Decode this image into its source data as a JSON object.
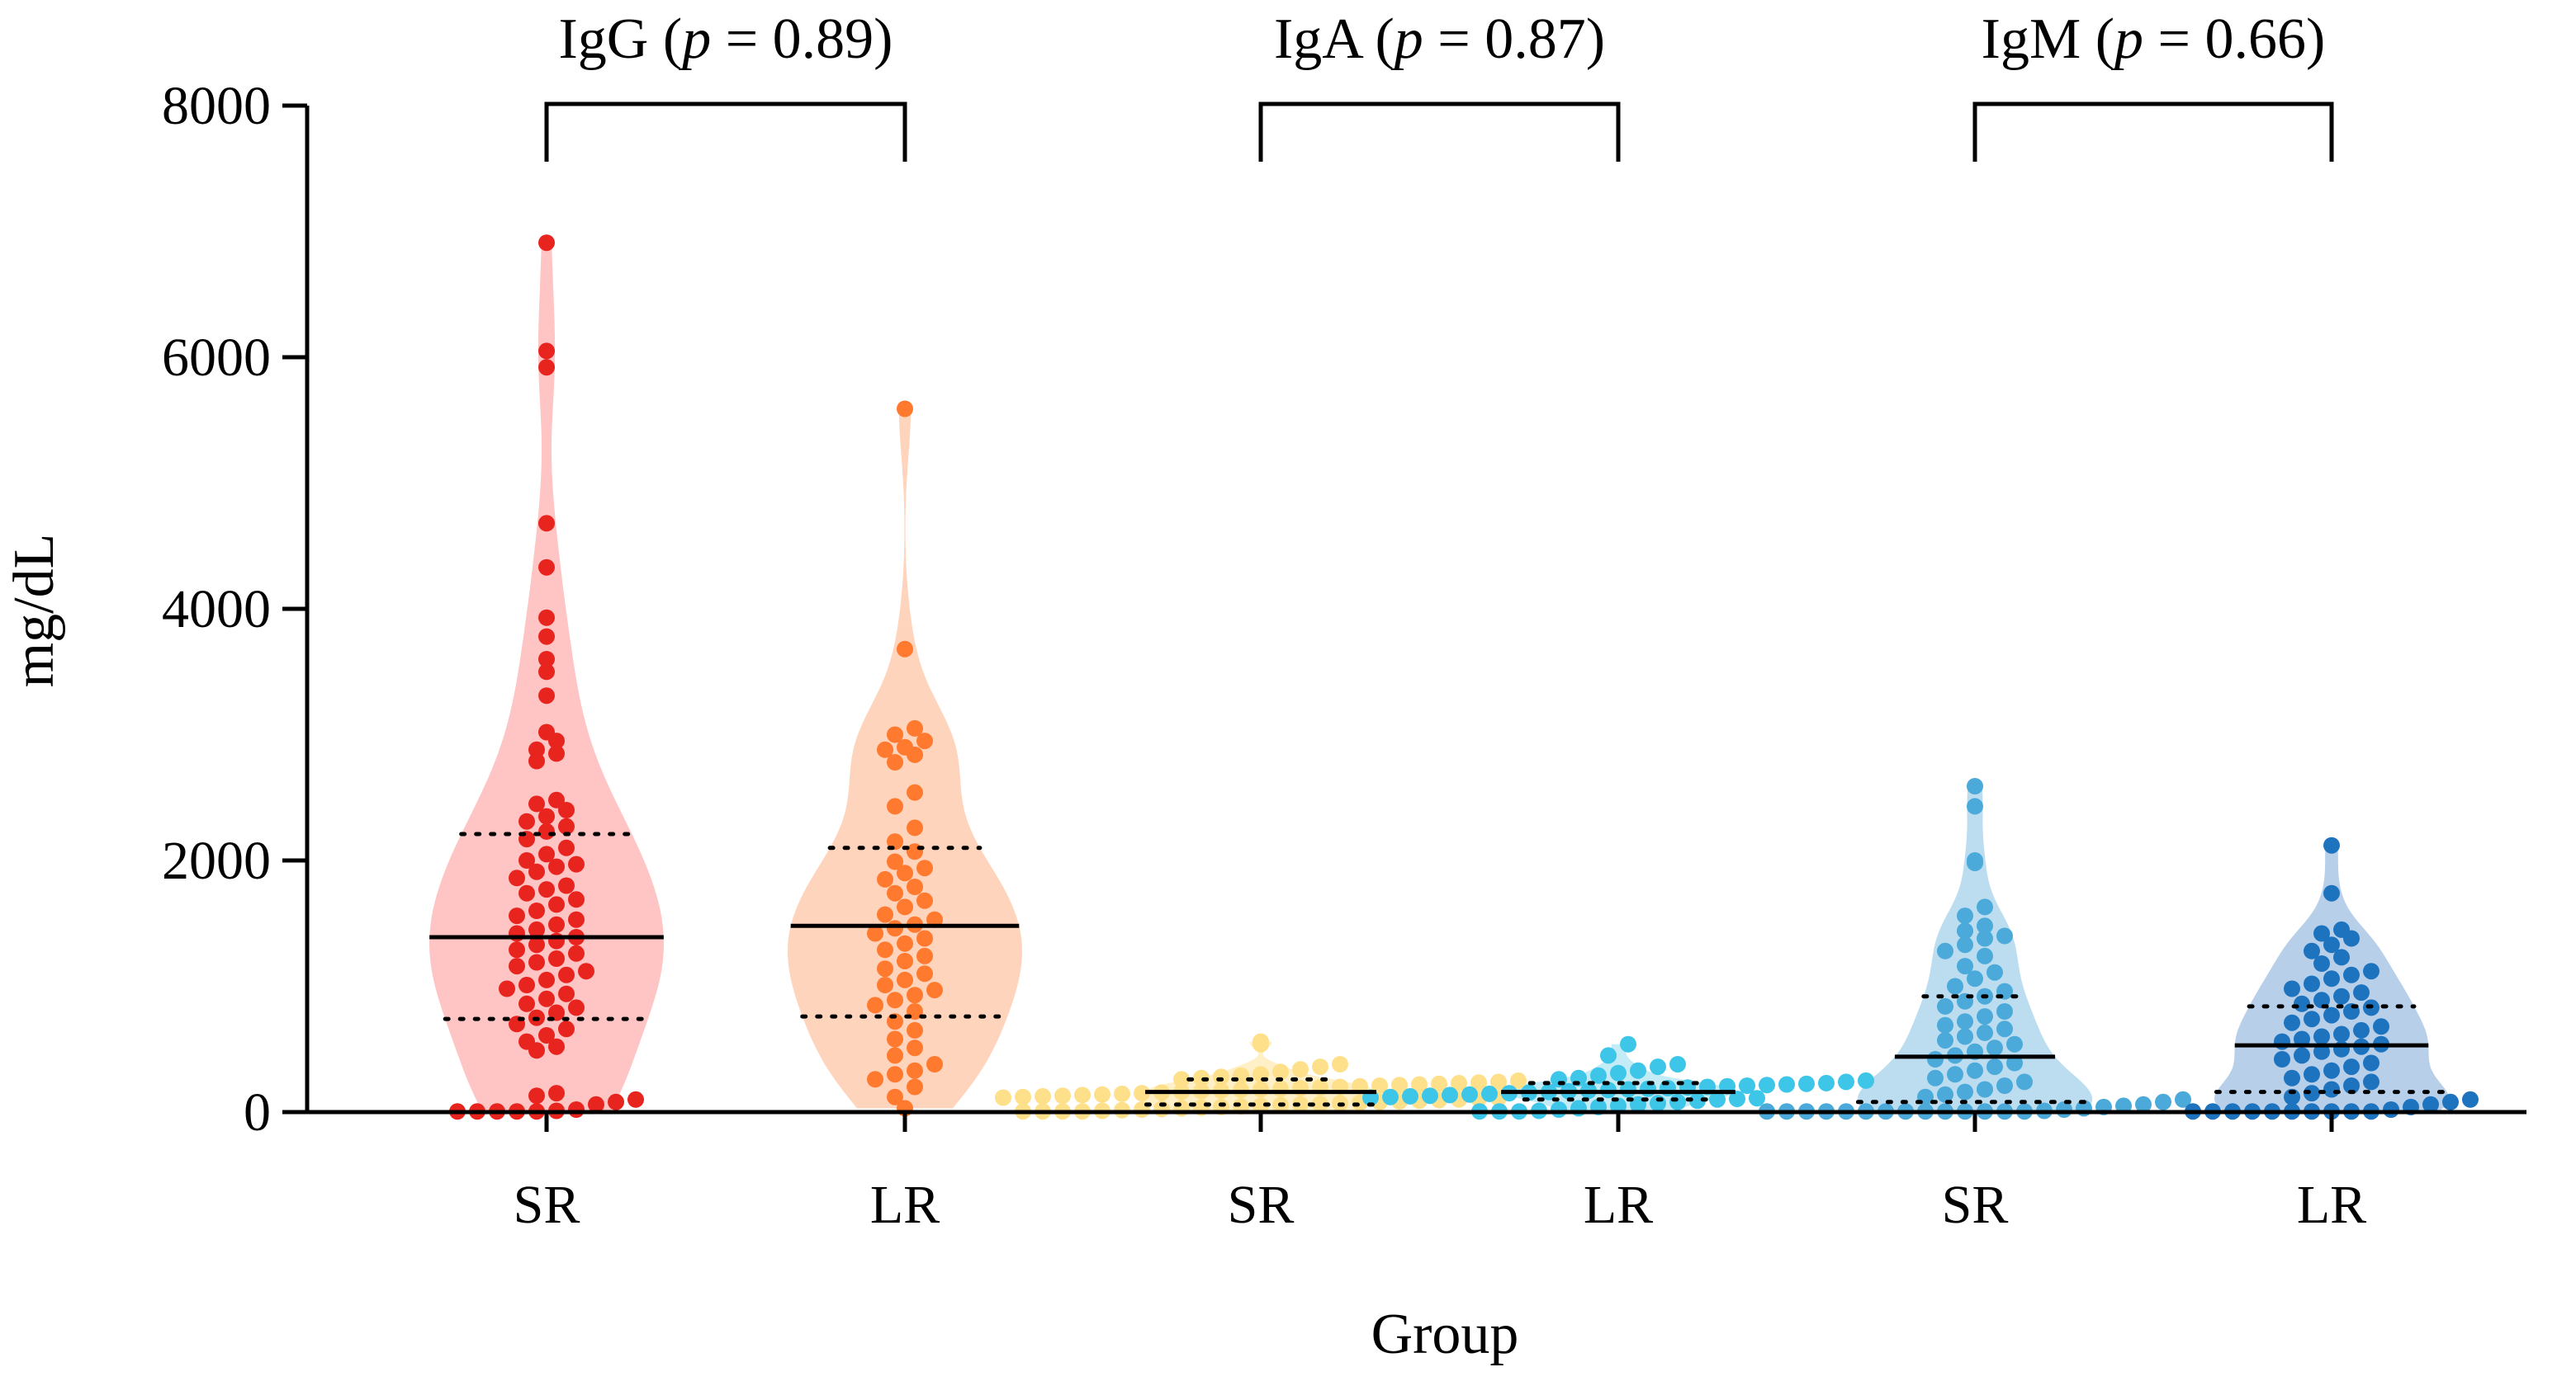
{
  "chart_data": {
    "type": "violin",
    "xlabel": "Group",
    "ylabel": "mg/dL",
    "ylim": [
      0,
      8000
    ],
    "yticks": [
      "0",
      "2000",
      "4000",
      "6000",
      "8000"
    ],
    "grid": false,
    "legend": "none",
    "comparisons": [
      {
        "name": "IgG",
        "p_prefix": "(",
        "p_symbol": "p",
        "p_value_text": " = 0.89)"
      },
      {
        "name": "IgA",
        "p_prefix": "(",
        "p_symbol": "p",
        "p_value_text": " = 0.87)"
      },
      {
        "name": "IgM",
        "p_prefix": "(",
        "p_symbol": "p",
        "p_value_text": " = 0.66)"
      }
    ],
    "series": [
      {
        "name": "IgG",
        "group": "SR",
        "color": "#E8241F",
        "fill": "#FFC4C4",
        "median": 1390,
        "q1": 740,
        "q3": 2210,
        "values": [
          6910,
          6050,
          5920,
          4680,
          4330,
          3930,
          3780,
          3600,
          3500,
          3310,
          3020,
          2950,
          2880,
          2850,
          2790,
          2480,
          2450,
          2400,
          2350,
          2310,
          2270,
          2230,
          2170,
          2100,
          2050,
          2000,
          1970,
          1950,
          1910,
          1860,
          1800,
          1770,
          1740,
          1690,
          1650,
          1600,
          1560,
          1530,
          1490,
          1450,
          1420,
          1390,
          1360,
          1330,
          1290,
          1260,
          1220,
          1190,
          1160,
          1120,
          1090,
          1050,
          1010,
          980,
          940,
          900,
          860,
          830,
          790,
          750,
          700,
          660,
          610,
          560,
          520,
          490,
          150,
          130,
          100,
          80,
          60,
          20,
          10,
          5,
          5,
          5,
          5,
          5
        ]
      },
      {
        "name": "IgG",
        "group": "LR",
        "color": "#FF7A2F",
        "fill": "#FFD4BC",
        "median": 1480,
        "q1": 760,
        "q3": 2100,
        "values": [
          5590,
          3680,
          3050,
          3000,
          2950,
          2900,
          2880,
          2840,
          2780,
          2540,
          2430,
          2260,
          2150,
          2070,
          1990,
          1940,
          1900,
          1850,
          1790,
          1740,
          1680,
          1630,
          1570,
          1530,
          1490,
          1460,
          1420,
          1380,
          1340,
          1290,
          1240,
          1200,
          1140,
          1100,
          1050,
          1010,
          970,
          930,
          890,
          850,
          800,
          720,
          650,
          580,
          510,
          450,
          380,
          330,
          300,
          260,
          200,
          120,
          30
        ]
      },
      {
        "name": "IgA",
        "group": "SR",
        "color": "#FFE08A",
        "fill": "#FFF0C8",
        "median": 160,
        "q1": 60,
        "q3": 260,
        "values": [
          560,
          540,
          380,
          360,
          340,
          320,
          300,
          290,
          280,
          270,
          260,
          250,
          240,
          235,
          230,
          225,
          220,
          215,
          210,
          205,
          200,
          195,
          190,
          185,
          180,
          175,
          170,
          165,
          160,
          155,
          150,
          145,
          140,
          135,
          130,
          125,
          120,
          115,
          110,
          105,
          100,
          95,
          90,
          85,
          80,
          75,
          70,
          65,
          60,
          55,
          50,
          45,
          40,
          35,
          30,
          25,
          20,
          15,
          10,
          5,
          5,
          5,
          5
        ]
      },
      {
        "name": "IgA",
        "group": "LR",
        "color": "#3EC6E8",
        "fill": "#C4ECF6",
        "median": 160,
        "q1": 100,
        "q3": 230,
        "values": [
          540,
          450,
          380,
          360,
          330,
          310,
          290,
          270,
          260,
          250,
          240,
          230,
          225,
          220,
          215,
          210,
          205,
          200,
          195,
          190,
          185,
          180,
          175,
          170,
          165,
          160,
          155,
          150,
          145,
          140,
          135,
          130,
          125,
          120,
          115,
          110,
          105,
          100,
          90,
          80,
          70,
          60,
          50,
          40,
          30,
          20,
          10,
          5,
          5,
          5
        ]
      },
      {
        "name": "IgM",
        "group": "SR",
        "color": "#4BAAD9",
        "fill": "#BCDDF0",
        "median": 440,
        "q1": 80,
        "q3": 920,
        "values": [
          2590,
          2430,
          2000,
          1980,
          1630,
          1560,
          1480,
          1440,
          1400,
          1380,
          1330,
          1280,
          1240,
          1160,
          1110,
          1060,
          1000,
          960,
          920,
          880,
          840,
          800,
          760,
          720,
          690,
          660,
          630,
          600,
          570,
          540,
          510,
          480,
          450,
          420,
          390,
          360,
          330,
          300,
          270,
          240,
          210,
          180,
          160,
          140,
          120,
          100,
          80,
          60,
          50,
          40,
          30,
          20,
          10,
          5,
          5,
          5,
          5,
          5,
          5,
          5,
          5,
          5,
          5,
          5,
          5,
          5,
          5
        ]
      },
      {
        "name": "IgM",
        "group": "LR",
        "color": "#1E73BE",
        "fill": "#B8CFEA",
        "median": 530,
        "q1": 160,
        "q3": 840,
        "values": [
          2120,
          1740,
          1450,
          1420,
          1380,
          1330,
          1280,
          1230,
          1180,
          1120,
          1090,
          1060,
          1020,
          980,
          950,
          920,
          890,
          860,
          830,
          800,
          770,
          740,
          710,
          680,
          650,
          620,
          600,
          580,
          560,
          540,
          520,
          500,
          480,
          450,
          420,
          390,
          360,
          330,
          300,
          270,
          240,
          210,
          180,
          150,
          120,
          100,
          80,
          60,
          40,
          20,
          5,
          5,
          5,
          5,
          5,
          5,
          5,
          5,
          5,
          5
        ]
      }
    ]
  }
}
